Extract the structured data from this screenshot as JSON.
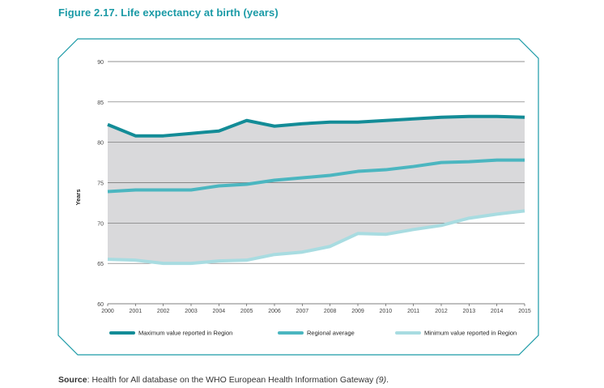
{
  "figure": {
    "title": "Figure 2.17. Life expectancy at birth (years)"
  },
  "source": {
    "label": "Source",
    "text": ": Health for All database on the WHO European Health Information Gateway ",
    "ref": "(9)",
    "end": "."
  },
  "colors": {
    "title": "#1a9aa6",
    "frame": "#1a9aa6",
    "max_series": "#138c97",
    "avg_series": "#4bb6c0",
    "min_series": "#a8dce1",
    "band": "#d9d9db"
  },
  "chart_data": {
    "type": "line",
    "title": "",
    "xlabel": "",
    "ylabel": "Years",
    "ylim": [
      60,
      90
    ],
    "yticks": [
      60,
      65,
      70,
      75,
      80,
      85,
      90
    ],
    "x": [
      "2000",
      "2001",
      "2002",
      "2003",
      "2004",
      "2005",
      "2006",
      "2007",
      "2008",
      "2009",
      "2010",
      "2011",
      "2012",
      "2013",
      "2014",
      "2015"
    ],
    "series": [
      {
        "name": "Maximum value reported in Region",
        "color": "#138c97",
        "values": [
          82.2,
          80.8,
          80.8,
          81.1,
          81.4,
          82.7,
          82.0,
          82.3,
          82.5,
          82.5,
          82.7,
          82.9,
          83.1,
          83.2,
          83.2,
          83.1
        ]
      },
      {
        "name": "Regional average",
        "color": "#4bb6c0",
        "values": [
          73.9,
          74.1,
          74.1,
          74.1,
          74.6,
          74.8,
          75.3,
          75.6,
          75.9,
          76.4,
          76.6,
          77.0,
          77.5,
          77.6,
          77.8,
          77.8
        ]
      },
      {
        "name": "Minimum value reported in Region",
        "color": "#a8dce1",
        "values": [
          65.5,
          65.4,
          65.0,
          65.0,
          65.3,
          65.4,
          66.1,
          66.4,
          67.1,
          68.7,
          68.6,
          69.2,
          69.7,
          70.6,
          71.1,
          71.5
        ]
      }
    ],
    "legend_position": "bottom"
  }
}
